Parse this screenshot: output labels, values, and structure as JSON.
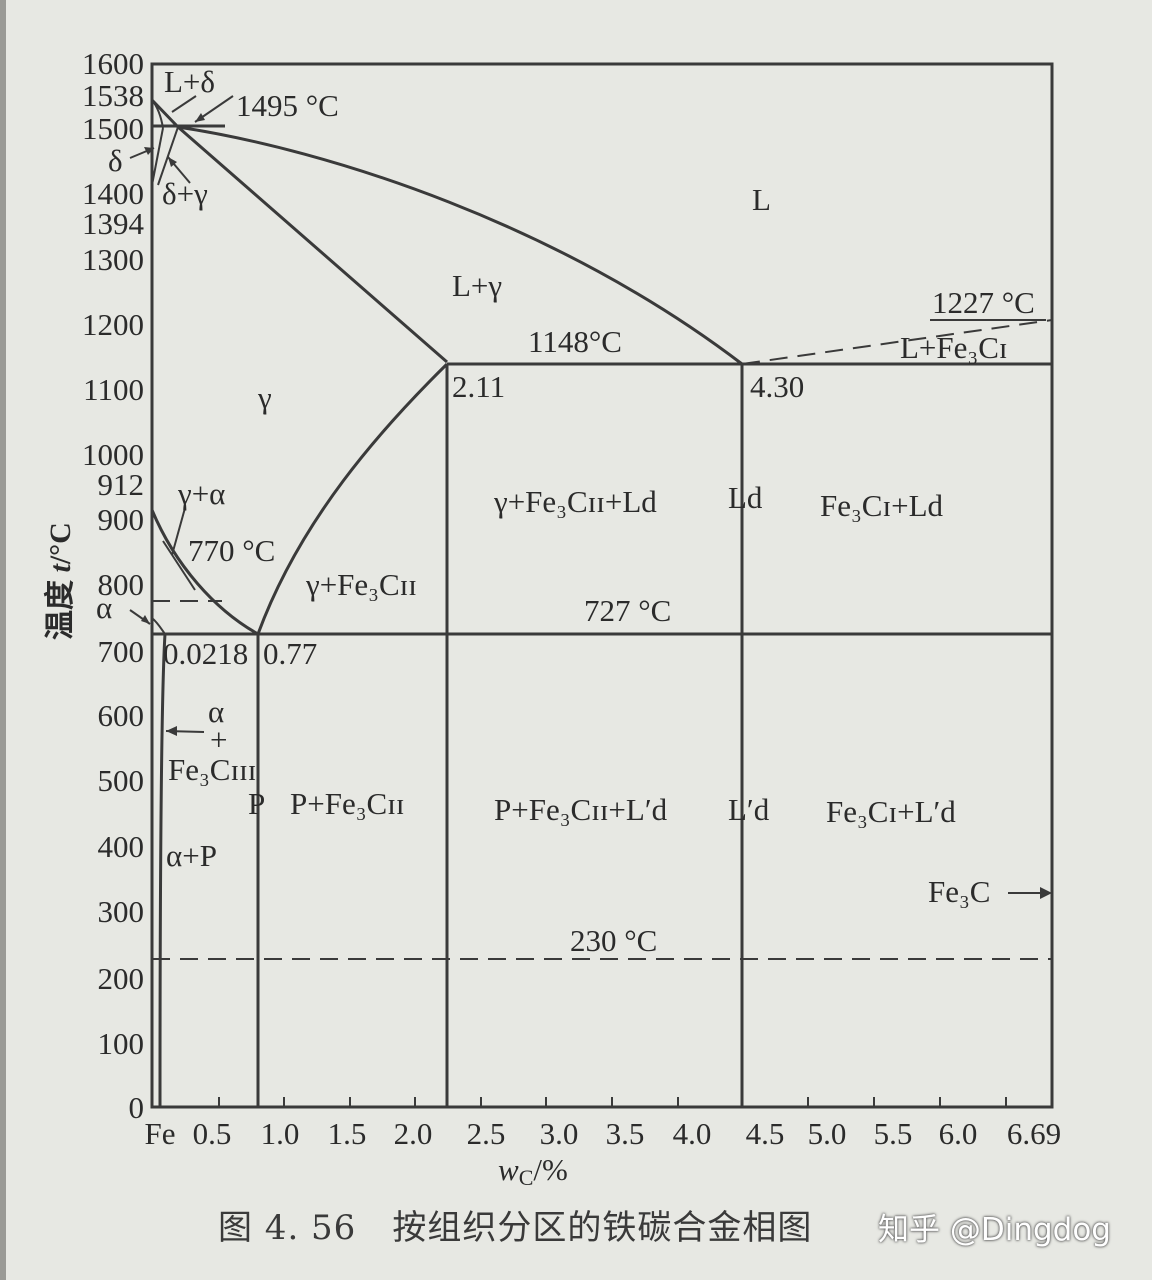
{
  "y_axis": {
    "label_prefix": "温度 ",
    "label_var": "t",
    "label_unit": "/°C",
    "ticks": [
      "1600",
      "1538",
      "1500",
      "1400",
      "1394",
      "1300",
      "1200",
      "1100",
      "1000",
      "912",
      "900",
      "800",
      "700",
      "600",
      "500",
      "400",
      "300",
      "200",
      "100",
      "0"
    ]
  },
  "x_axis": {
    "label_var": "w",
    "label_sub": "C",
    "label_unit": "/%",
    "ticks": [
      "Fe",
      "0.5",
      "1.0",
      "1.5",
      "2.0",
      "2.5",
      "3.0",
      "3.5",
      "4.0",
      "4.5",
      "5.0",
      "5.5",
      "6.0",
      "6.69"
    ]
  },
  "points": {
    "p_2_11": "2.11",
    "p_4_30": "4.30",
    "p_0_0218": "0.0218",
    "p_0_77": "0.77"
  },
  "temperatures": {
    "t1495": "1495 °C",
    "t1227": "1227 °C",
    "t1148": "1148°C",
    "t770": "770 °C",
    "t727": "727 °C",
    "t230": "230 °C"
  },
  "phases": {
    "L": "L",
    "L_delta": "L+δ",
    "delta": "δ",
    "delta_gamma": "δ+γ",
    "L_gamma": "L+γ",
    "gamma": "γ",
    "gamma_alpha": "γ+α",
    "alpha": "α",
    "L_Fe3CI": "L+Fe₃Cɪ",
    "gamma_Fe3CII": "γ+Fe₃Cɪɪ",
    "gamma_Fe3CII_Ld": "γ+Fe₃Cɪɪ+Ld",
    "Ld": "Ld",
    "Fe3CI_Ld": "Fe₃Cɪ+Ld",
    "alpha_small": "α",
    "plus": "+",
    "Fe3CIII": "Fe₃Cɪɪɪ",
    "alpha_P": "α+P",
    "P": "P",
    "P_Fe3CII": "P+Fe₃Cɪɪ",
    "P_Fe3CII_Ld_prime": "P+Fe₃Cɪɪ+L′d",
    "Ld_prime": "L′d",
    "Fe3CI_Ld_prime": "Fe₃Cɪ+L′d",
    "Fe3C": "Fe₃C"
  },
  "caption": {
    "number": "图 4. 56",
    "title": "按组织分区的铁碳合金相图"
  },
  "watermark": "知乎 @Dingdog",
  "colors": {
    "background": "#e7e8e3",
    "ink": "#2b2b2b"
  }
}
